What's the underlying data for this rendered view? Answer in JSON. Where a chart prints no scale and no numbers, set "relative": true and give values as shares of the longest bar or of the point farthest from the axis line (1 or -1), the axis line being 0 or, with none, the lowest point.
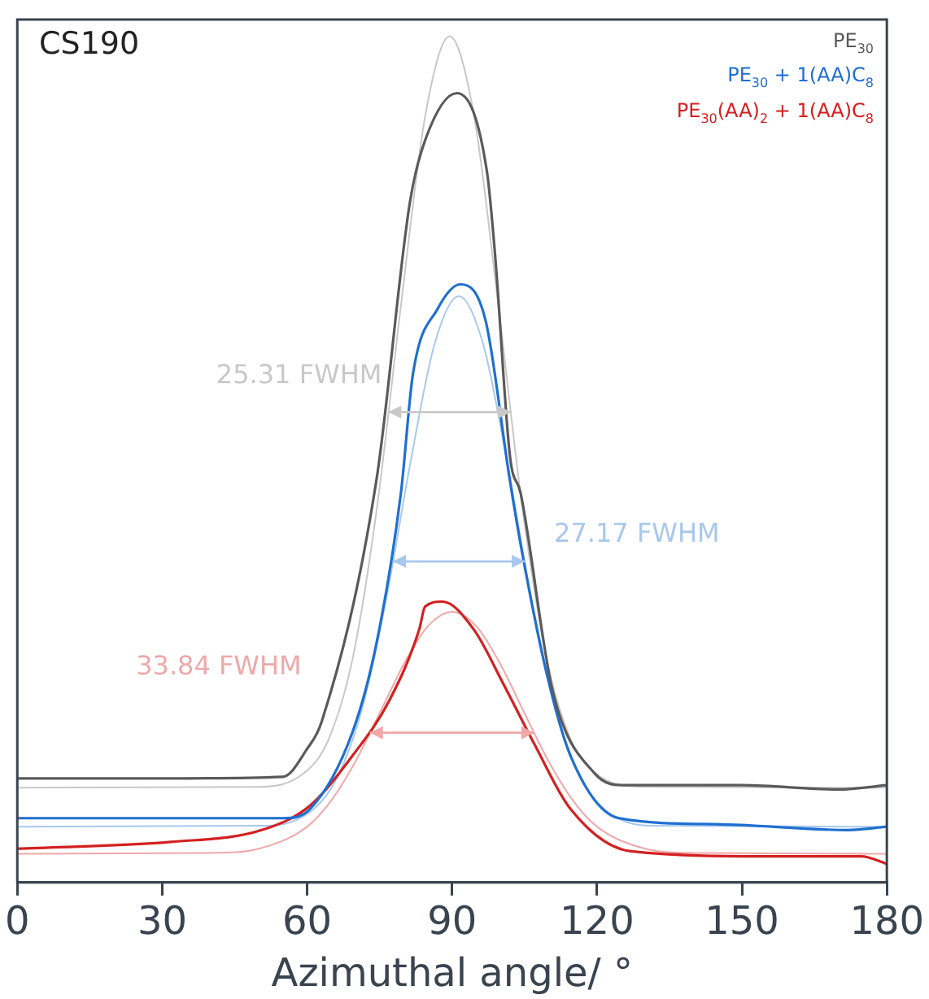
{
  "chart_data": {
    "type": "line",
    "relative": true,
    "title": "CS190",
    "xlabel": "Azimuthal angle/ °",
    "xlim": [
      0,
      180
    ],
    "xticks": [
      0,
      30,
      60,
      90,
      120,
      150,
      180
    ],
    "grid": false,
    "legend": "top right",
    "marker": "none",
    "line_style": "solid",
    "series": [
      {
        "name": "PE$_{30}$",
        "color": "#5a5a5a",
        "x": [
          0,
          30,
          55,
          60,
          63,
          74.3,
          81.3,
          84.4,
          91,
          97.2,
          98.9,
          102,
          104.2,
          110.8,
          119.5,
          125.8,
          150,
          170,
          180
        ],
        "values": [
          0.123,
          0.123,
          0.125,
          0.158,
          0.19,
          0.474,
          0.805,
          0.877,
          0.933,
          0.841,
          0.742,
          0.503,
          0.46,
          0.227,
          0.129,
          0.115,
          0.115,
          0.11,
          0.115
        ]
      },
      {
        "name": "PE$_{30}$ + 1(AA)C$_{8}$",
        "color": "#1f6fd0",
        "x": [
          0,
          30,
          55,
          60.6,
          69.4,
          74.4,
          79.4,
          81.9,
          87,
          91.7,
          96.9,
          102,
          104.5,
          109.5,
          114.5,
          124.6,
          144.6,
          172,
          180
        ],
        "values": [
          0.076,
          0.076,
          0.076,
          0.087,
          0.178,
          0.284,
          0.46,
          0.601,
          0.678,
          0.707,
          0.665,
          0.474,
          0.39,
          0.249,
          0.15,
          0.076,
          0.069,
          0.062,
          0.066
        ]
      },
      {
        "name": "PE$_{30}$(AA)$_{2}$ + 1(AA)C$_{8}$",
        "color": "#d42020",
        "x": [
          0,
          31.8,
          50.6,
          60.6,
          69.4,
          76.9,
          83.2,
          84.4,
          88,
          94.5,
          100.6,
          107,
          114.5,
          127,
          157,
          174.7,
          180
        ],
        "values": [
          0.04,
          0.048,
          0.062,
          0.091,
          0.15,
          0.214,
          0.299,
          0.326,
          0.332,
          0.299,
          0.235,
          0.164,
          0.087,
          0.037,
          0.031,
          0.031,
          0.022
        ]
      },
      {
        "color": "#c8c8c8",
        "x": [
          0,
          49.5,
          59.5,
          64.5,
          69.5,
          74.5,
          79.5,
          84.5,
          89.5,
          94.5,
          99.5,
          104.5,
          109.5,
          114.5,
          119.5,
          129.5,
          180
        ],
        "values": [
          0.112,
          0.113,
          0.13,
          0.17,
          0.267,
          0.445,
          0.686,
          0.908,
          1.0,
          0.908,
          0.686,
          0.445,
          0.267,
          0.17,
          0.13,
          0.113,
          0.112
        ]
      },
      {
        "color": "#a8c8ee",
        "x": [
          0,
          51.4,
          61.4,
          66.4,
          71.4,
          76.4,
          81.4,
          86.4,
          91.4,
          96.4,
          101.4,
          106.4,
          111.4,
          116.4,
          121.4,
          131.4,
          180
        ],
        "values": [
          0.066,
          0.067,
          0.087,
          0.126,
          0.206,
          0.336,
          0.497,
          0.637,
          0.693,
          0.637,
          0.497,
          0.336,
          0.206,
          0.126,
          0.087,
          0.067,
          0.066
        ]
      },
      {
        "color": "#f0a8a8",
        "x": [
          0,
          40,
          50,
          60,
          65,
          70,
          75,
          80,
          85,
          90,
          95,
          100,
          105,
          110,
          115,
          120,
          130,
          140,
          180
        ],
        "values": [
          0.034,
          0.035,
          0.04,
          0.066,
          0.097,
          0.143,
          0.2,
          0.258,
          0.303,
          0.32,
          0.303,
          0.258,
          0.2,
          0.143,
          0.097,
          0.066,
          0.04,
          0.035,
          0.034
        ]
      }
    ],
    "annotations": [
      "25.31 FWHM",
      "27.17 FWHM",
      "33.84 FWHM"
    ]
  }
}
